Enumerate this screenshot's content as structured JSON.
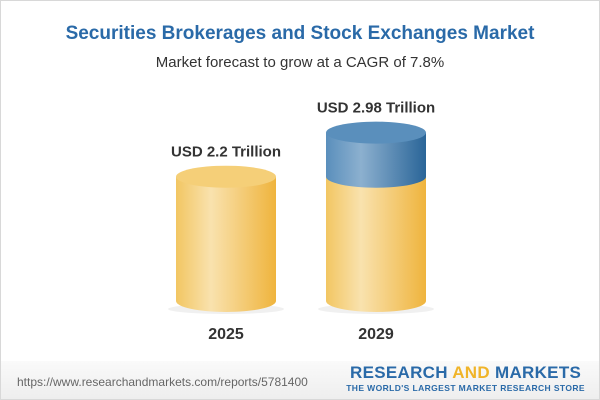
{
  "chart_data": {
    "type": "bar",
    "title": "Securities Brokerages and Stock Exchanges Market",
    "subtitle": "Market forecast to grow at a CAGR of 7.8%",
    "categories": [
      "2025",
      "2029"
    ],
    "values": [
      2.2,
      2.98
    ],
    "data_labels": [
      "USD 2.2 Trillion",
      "USD 2.98 Trillion"
    ],
    "unit": "USD Trillion",
    "style": "3d-cylinder",
    "colors": {
      "base": "#f2c65e",
      "growth": "#4d86b5"
    }
  },
  "footer": {
    "url": "https://www.researchandmarkets.com/reports/5781400",
    "brand_part1": "RESEARCH ",
    "brand_part2": "AND",
    "brand_part3": " MARKETS",
    "tagline": "THE WORLD'S LARGEST MARKET RESEARCH STORE"
  }
}
